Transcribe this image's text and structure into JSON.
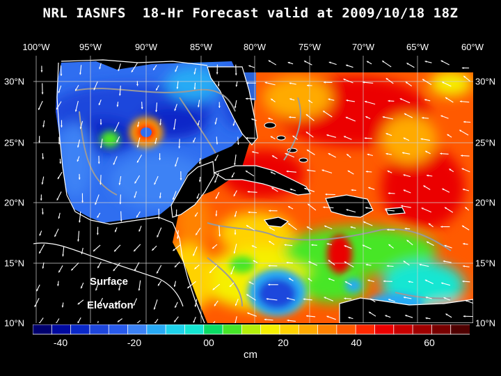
{
  "title": "NRL IASNFS  18-Hr Forecast valid at 2009/10/18 18Z",
  "lon_labels": [
    "100°W",
    "95°W",
    "90°W",
    "85°W",
    "80°W",
    "75°W",
    "70°W",
    "65°W",
    "60°W"
  ],
  "lat_labels": [
    "30°N",
    "25°N",
    "20°N",
    "15°N",
    "10°N"
  ],
  "overlay": {
    "line1": "Surface",
    "line2": "Elevation"
  },
  "colorbar": {
    "labels": [
      "-40",
      "-20",
      "00",
      "20",
      "40",
      "60"
    ],
    "unit": "cm",
    "colors": [
      "#00006e",
      "#000aa0",
      "#0a28c8",
      "#1e46dc",
      "#285aeb",
      "#3c82f5",
      "#28aaf5",
      "#1ed2eb",
      "#14e6d2",
      "#0adc64",
      "#46e628",
      "#b4f00a",
      "#f5f000",
      "#ffd200",
      "#ffaa00",
      "#ff8200",
      "#ff5a00",
      "#ff2800",
      "#eb0000",
      "#c80000",
      "#a00000",
      "#780000",
      "#500000"
    ]
  },
  "chart_data": {
    "type": "heatmap",
    "title": "NRL IASNFS  18-Hr Forecast valid at 2009/10/18 18Z",
    "variable": "Surface Elevation",
    "unit": "cm",
    "lon_range": [
      -100,
      -60
    ],
    "lat_range": [
      10,
      31
    ],
    "color_range": [
      -48,
      70
    ],
    "features": [
      {
        "region": "Gulf of Mexico interior",
        "value": -20
      },
      {
        "region": "Loop Current eddy near 90°W 25°N",
        "value": 40
      },
      {
        "region": "Caribbean Sea / Atlantic",
        "value": 40
      },
      {
        "region": "Southwest Caribbean near 80°W 12°N",
        "value": -20
      }
    ],
    "grid": true
  }
}
